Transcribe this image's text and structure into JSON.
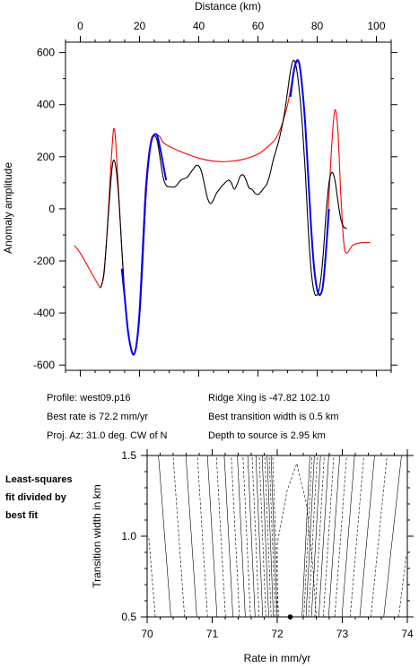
{
  "chart_data": [
    {
      "type": "line",
      "title": "",
      "xlabel": "Distance (km)",
      "ylabel": "Anomaly amplitude",
      "xlim": [
        -5,
        105
      ],
      "ylim": [
        -620,
        640
      ],
      "x_ticks": [
        0,
        20,
        40,
        60,
        80,
        100
      ],
      "y_ticks": [
        -600,
        -400,
        -200,
        0,
        200,
        400,
        600
      ],
      "x_tick_labels": [
        "0",
        "20",
        "40",
        "60",
        "80",
        "100"
      ],
      "y_tick_labels": [
        "-600",
        "-400",
        "-200",
        "0",
        "200",
        "400",
        "600"
      ],
      "series": [
        {
          "color": "#ff0000",
          "x": [
            -2,
            0,
            2,
            4,
            6,
            7,
            8,
            9,
            10,
            11,
            11.5,
            12,
            13,
            14,
            15,
            16,
            17,
            18,
            19,
            20,
            21,
            22,
            23,
            24,
            25,
            26,
            27,
            28,
            30,
            35,
            40,
            45,
            50,
            55,
            60,
            63,
            66,
            68,
            70,
            71,
            72,
            73,
            74,
            75,
            76,
            77,
            78,
            79,
            80,
            81,
            82,
            83,
            84,
            85,
            86,
            87,
            88,
            89,
            90,
            92,
            95,
            98
          ],
          "y": [
            -140,
            -170,
            -210,
            -250,
            -290,
            -300,
            -240,
            -100,
            100,
            280,
            305,
            250,
            50,
            -150,
            -330,
            -460,
            -530,
            -560,
            -510,
            -380,
            -150,
            80,
            200,
            270,
            285,
            285,
            275,
            255,
            240,
            215,
            195,
            183,
            182,
            190,
            210,
            235,
            270,
            320,
            400,
            460,
            530,
            570,
            560,
            470,
            330,
            130,
            -80,
            -230,
            -310,
            -330,
            -290,
            -150,
            50,
            260,
            380,
            300,
            50,
            -130,
            -170,
            -140,
            -130,
            -130
          ]
        },
        {
          "color": "#000000",
          "x": [
            7,
            8,
            9,
            10,
            11,
            12,
            13,
            14,
            15,
            16,
            17,
            18,
            19,
            20,
            21,
            22,
            23,
            24,
            25,
            26,
            27,
            28,
            29,
            30,
            32,
            34,
            36,
            37,
            38,
            39,
            40,
            41,
            42,
            43,
            44,
            45,
            46,
            47,
            48,
            50,
            51,
            52,
            53,
            54,
            55,
            56,
            57,
            58,
            59,
            60,
            61,
            62,
            63,
            64,
            65,
            66,
            67,
            68,
            69,
            70,
            71,
            72,
            73,
            74,
            75,
            76,
            77,
            78,
            79,
            80,
            81,
            82,
            83,
            84,
            85,
            86,
            87,
            88,
            89,
            90
          ],
          "y": [
            -300,
            -250,
            -100,
            60,
            180,
            160,
            40,
            -150,
            -330,
            -450,
            -530,
            -560,
            -520,
            -420,
            -230,
            10,
            180,
            260,
            280,
            260,
            190,
            120,
            90,
            85,
            85,
            110,
            120,
            135,
            150,
            165,
            165,
            140,
            90,
            40,
            20,
            35,
            60,
            75,
            90,
            110,
            100,
            75,
            95,
            125,
            130,
            110,
            80,
            75,
            60,
            55,
            65,
            80,
            95,
            130,
            180,
            220,
            260,
            310,
            370,
            450,
            530,
            570,
            540,
            450,
            320,
            140,
            -80,
            -240,
            -320,
            -330,
            -290,
            -180,
            -20,
            100,
            140,
            110,
            30,
            -40,
            -70,
            -75
          ]
        },
        {
          "color": "#0000ff",
          "x": [
            14,
            15,
            16,
            17,
            18,
            19,
            20,
            21,
            22,
            23,
            24,
            25,
            26,
            27,
            28,
            29
          ],
          "y": [
            -230,
            -340,
            -460,
            -530,
            -560,
            -520,
            -400,
            -180,
            40,
            180,
            260,
            285,
            280,
            230,
            170,
            110
          ]
        },
        {
          "color": "#0000ff",
          "x": [
            71,
            72,
            73,
            74,
            75,
            76,
            77,
            78,
            79,
            80,
            81,
            82,
            83,
            84
          ],
          "y": [
            430,
            520,
            565,
            555,
            460,
            320,
            120,
            -80,
            -230,
            -310,
            -330,
            -290,
            -160,
            0
          ]
        }
      ]
    },
    {
      "type": "contour",
      "title": "",
      "xlabel": "Rate in mm/yr",
      "ylabel": "Transition width in km",
      "xlim": [
        70,
        74
      ],
      "ylim": [
        0.5,
        1.5
      ],
      "x_ticks": [
        70,
        71,
        72,
        73,
        74
      ],
      "y_ticks": [
        0.5,
        1.0,
        1.5
      ],
      "x_tick_labels": [
        "70",
        "71",
        "72",
        "73",
        "74"
      ],
      "y_tick_labels": [
        "0.5",
        "1.0",
        "1.5"
      ],
      "best_fit_point": {
        "x": 72.2,
        "y": 0.5
      }
    }
  ],
  "info": {
    "profile": "Profile: west09.p16",
    "best_rate": "Best rate is 72.2 mm/yr",
    "proj_az": "Proj. Az: 31.0 deg. CW of N",
    "ridge_xing": "Ridge Xing is -47.82 102.10",
    "transition": "Best transition width is 0.5 km",
    "depth": "Depth to source is  2.95 km"
  },
  "side_label": {
    "line1": "Least-squares",
    "line2": "fit divided by",
    "line3": "best fit"
  }
}
